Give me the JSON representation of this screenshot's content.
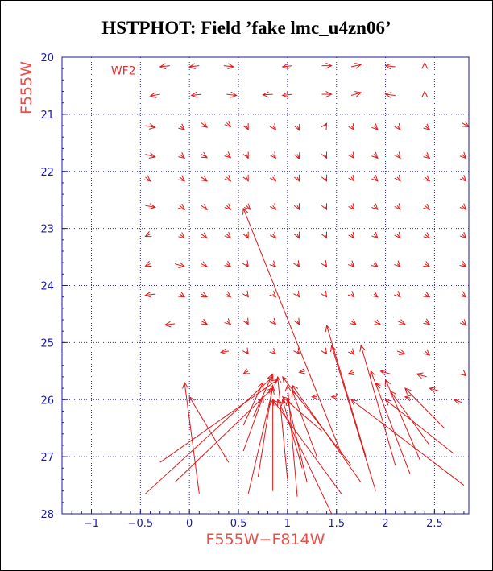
{
  "title": "HSTPHOT: Field ’fake lmc_u4zn06’",
  "chart_data": {
    "type": "scatter",
    "title": "HSTPHOT: Field ’fake lmc_u4zn06’",
    "xlabel": "F555W−F814W",
    "ylabel": "F555W",
    "xlim": [
      -1.3,
      2.85
    ],
    "ylim": [
      28,
      20
    ],
    "y_inverted": true,
    "x_ticks": [
      -1,
      -0.5,
      0,
      0.5,
      1,
      1.5,
      2,
      2.5
    ],
    "x_tick_labels": [
      "−1",
      "−0.5",
      "0",
      "0.5",
      "1",
      "1.5",
      "2",
      "2.5"
    ],
    "x_grid": [
      -1,
      -0.5,
      0,
      0.5,
      1,
      1.5,
      2,
      2.5
    ],
    "y_ticks": [
      20,
      21,
      22,
      23,
      24,
      25,
      26,
      27,
      28
    ],
    "y_tick_labels": [
      "20",
      "21",
      "22",
      "23",
      "24",
      "25",
      "26",
      "27",
      "28"
    ],
    "grid": true,
    "panel_label": "WF2",
    "colors": {
      "frame": "#1a1aa6",
      "grid": "#2a2ad0",
      "vectors": "#e01818",
      "axis_labels": "#e8504a",
      "title": "#000000"
    },
    "series": [
      {
        "type": "vector_field",
        "arrows": [
          [
            -0.2,
            20.15,
            -0.3,
            20.17
          ],
          [
            0.1,
            20.15,
            0.0,
            20.17
          ],
          [
            0.35,
            20.15,
            0.45,
            20.17
          ],
          [
            1.05,
            20.15,
            0.95,
            20.17
          ],
          [
            1.35,
            20.15,
            1.45,
            20.15
          ],
          [
            1.65,
            20.17,
            1.75,
            20.13
          ],
          [
            2.1,
            20.17,
            2.0,
            20.15
          ],
          [
            2.4,
            20.15,
            2.4,
            20.1
          ],
          [
            -0.3,
            20.65,
            -0.4,
            20.68
          ],
          [
            0.12,
            20.65,
            0.02,
            20.67
          ],
          [
            0.38,
            20.65,
            0.48,
            20.67
          ],
          [
            0.85,
            20.65,
            0.75,
            20.66
          ],
          [
            1.05,
            20.65,
            0.95,
            20.67
          ],
          [
            1.35,
            20.65,
            1.45,
            20.65
          ],
          [
            1.65,
            20.67,
            1.75,
            20.62
          ],
          [
            2.1,
            20.67,
            2.0,
            20.65
          ],
          [
            2.4,
            20.65,
            2.4,
            20.6
          ],
          [
            -0.45,
            21.2,
            -0.35,
            21.23
          ],
          [
            -0.1,
            21.2,
            -0.05,
            21.27
          ],
          [
            0.12,
            21.15,
            0.18,
            21.23
          ],
          [
            0.38,
            21.15,
            0.42,
            21.22
          ],
          [
            0.58,
            21.2,
            0.6,
            21.27
          ],
          [
            0.85,
            21.2,
            0.88,
            21.27
          ],
          [
            1.1,
            21.2,
            1.12,
            21.28
          ],
          [
            1.38,
            21.22,
            1.4,
            21.16
          ],
          [
            1.65,
            21.2,
            1.68,
            21.27
          ],
          [
            1.88,
            21.2,
            1.92,
            21.27
          ],
          [
            2.12,
            21.2,
            2.15,
            21.27
          ],
          [
            2.4,
            21.2,
            2.45,
            21.27
          ],
          [
            2.78,
            21.15,
            2.85,
            21.22
          ],
          [
            -0.45,
            21.7,
            -0.35,
            21.75
          ],
          [
            -0.1,
            21.7,
            -0.05,
            21.77
          ],
          [
            0.12,
            21.7,
            0.18,
            21.76
          ],
          [
            0.38,
            21.7,
            0.42,
            21.76
          ],
          [
            0.58,
            21.7,
            0.6,
            21.77
          ],
          [
            0.85,
            21.7,
            0.88,
            21.77
          ],
          [
            1.1,
            21.7,
            1.12,
            21.78
          ],
          [
            1.38,
            21.7,
            1.4,
            21.77
          ],
          [
            1.65,
            21.7,
            1.68,
            21.77
          ],
          [
            1.88,
            21.7,
            1.92,
            21.77
          ],
          [
            2.12,
            21.7,
            2.15,
            21.77
          ],
          [
            2.4,
            21.7,
            2.45,
            21.77
          ],
          [
            2.78,
            21.7,
            2.82,
            21.77
          ],
          [
            -0.45,
            22.1,
            -0.4,
            22.17
          ],
          [
            -0.1,
            22.1,
            -0.05,
            22.17
          ],
          [
            0.12,
            22.1,
            0.18,
            22.17
          ],
          [
            0.38,
            22.1,
            0.42,
            22.17
          ],
          [
            0.58,
            22.1,
            0.6,
            22.17
          ],
          [
            0.85,
            22.1,
            0.88,
            22.17
          ],
          [
            1.1,
            22.1,
            1.12,
            22.17
          ],
          [
            1.38,
            22.1,
            1.4,
            22.17
          ],
          [
            1.65,
            22.1,
            1.68,
            22.17
          ],
          [
            1.88,
            22.1,
            1.92,
            22.17
          ],
          [
            2.12,
            22.1,
            2.15,
            22.17
          ],
          [
            2.4,
            22.1,
            2.45,
            22.17
          ],
          [
            2.78,
            22.1,
            2.82,
            22.17
          ],
          [
            -0.45,
            22.6,
            -0.35,
            22.63
          ],
          [
            -0.1,
            22.6,
            -0.05,
            22.67
          ],
          [
            0.12,
            22.6,
            0.18,
            22.67
          ],
          [
            0.38,
            22.6,
            0.42,
            22.67
          ],
          [
            0.58,
            22.6,
            0.62,
            22.67
          ],
          [
            0.85,
            22.6,
            0.88,
            22.67
          ],
          [
            1.1,
            22.6,
            1.12,
            22.67
          ],
          [
            1.38,
            22.6,
            1.4,
            22.67
          ],
          [
            1.65,
            22.6,
            1.68,
            22.67
          ],
          [
            1.88,
            22.6,
            1.92,
            22.67
          ],
          [
            2.12,
            22.6,
            2.15,
            22.67
          ],
          [
            2.4,
            22.6,
            2.45,
            22.67
          ],
          [
            2.78,
            22.6,
            2.82,
            22.67
          ],
          [
            -0.4,
            23.1,
            -0.45,
            23.14
          ],
          [
            -0.1,
            23.1,
            -0.05,
            23.17
          ],
          [
            0.12,
            23.1,
            0.18,
            23.17
          ],
          [
            0.38,
            23.1,
            0.42,
            23.17
          ],
          [
            0.58,
            23.1,
            0.6,
            23.17
          ],
          [
            0.85,
            23.1,
            0.88,
            23.17
          ],
          [
            1.1,
            23.1,
            1.12,
            23.17
          ],
          [
            1.38,
            23.1,
            1.4,
            23.17
          ],
          [
            1.65,
            23.1,
            1.68,
            23.17
          ],
          [
            1.88,
            23.1,
            1.92,
            23.17
          ],
          [
            2.12,
            23.1,
            2.15,
            23.17
          ],
          [
            2.4,
            23.1,
            2.45,
            23.17
          ],
          [
            2.78,
            23.1,
            2.82,
            23.17
          ],
          [
            -0.4,
            23.62,
            -0.45,
            23.66
          ],
          [
            -0.15,
            23.62,
            -0.05,
            23.67
          ],
          [
            0.12,
            23.62,
            0.18,
            23.67
          ],
          [
            0.38,
            23.62,
            0.42,
            23.67
          ],
          [
            0.58,
            23.62,
            0.6,
            23.67
          ],
          [
            0.85,
            23.62,
            0.88,
            23.67
          ],
          [
            1.1,
            23.62,
            1.12,
            23.67
          ],
          [
            1.38,
            23.62,
            1.4,
            23.67
          ],
          [
            1.65,
            23.62,
            1.68,
            23.67
          ],
          [
            1.88,
            23.62,
            1.92,
            23.67
          ],
          [
            2.12,
            23.62,
            2.15,
            23.67
          ],
          [
            2.4,
            23.62,
            2.45,
            23.67
          ],
          [
            2.78,
            23.62,
            2.82,
            23.67
          ],
          [
            -0.35,
            24.15,
            -0.45,
            24.17
          ],
          [
            -0.1,
            24.15,
            -0.05,
            24.2
          ],
          [
            0.12,
            24.15,
            0.18,
            24.2
          ],
          [
            0.38,
            24.15,
            0.42,
            24.2
          ],
          [
            0.58,
            24.15,
            0.6,
            24.2
          ],
          [
            0.85,
            24.15,
            0.88,
            24.2
          ],
          [
            1.1,
            24.15,
            1.12,
            24.2
          ],
          [
            1.38,
            24.15,
            1.4,
            24.2
          ],
          [
            1.65,
            24.15,
            1.68,
            24.2
          ],
          [
            1.88,
            24.15,
            1.92,
            24.2
          ],
          [
            2.12,
            24.15,
            2.15,
            24.2
          ],
          [
            2.4,
            24.15,
            2.45,
            24.2
          ],
          [
            2.78,
            24.15,
            2.82,
            24.2
          ],
          [
            -0.15,
            24.67,
            -0.25,
            24.69
          ],
          [
            0.12,
            24.62,
            0.18,
            24.68
          ],
          [
            0.38,
            24.62,
            0.42,
            24.68
          ],
          [
            0.58,
            24.62,
            0.6,
            24.68
          ],
          [
            0.85,
            24.62,
            0.88,
            24.68
          ],
          [
            1.1,
            24.62,
            1.12,
            24.68
          ],
          [
            1.65,
            24.62,
            1.7,
            24.69
          ],
          [
            1.88,
            24.62,
            1.95,
            24.69
          ],
          [
            2.12,
            24.62,
            2.2,
            24.68
          ],
          [
            2.4,
            24.62,
            2.45,
            24.68
          ],
          [
            2.78,
            24.62,
            2.82,
            24.7
          ],
          [
            0.4,
            25.15,
            0.32,
            25.17
          ],
          [
            0.58,
            25.15,
            0.6,
            25.2
          ],
          [
            0.85,
            25.15,
            0.88,
            25.2
          ],
          [
            1.1,
            25.15,
            1.12,
            25.2
          ],
          [
            1.38,
            25.15,
            1.4,
            25.2
          ],
          [
            1.65,
            25.15,
            1.68,
            25.21
          ],
          [
            2.12,
            25.15,
            2.2,
            25.2
          ],
          [
            2.4,
            25.15,
            2.45,
            25.22
          ],
          [
            0.6,
            25.5,
            0.55,
            25.55
          ],
          [
            1.18,
            25.5,
            1.12,
            25.52
          ],
          [
            1.68,
            25.52,
            1.62,
            25.55
          ],
          [
            2.05,
            25.55,
            1.95,
            25.5
          ],
          [
            2.42,
            25.6,
            2.32,
            25.55
          ],
          [
            2.8,
            25.55,
            2.82,
            25.58
          ],
          [
            1.95,
            25.75,
            1.9,
            25.72
          ],
          [
            2.55,
            25.85,
            2.45,
            25.8
          ],
          [
            2.78,
            26.05,
            2.7,
            26.0
          ],
          [
            1.3,
            25.95,
            1.25,
            25.95
          ],
          [
            1.5,
            25.95,
            1.45,
            25.95
          ],
          [
            2.25,
            25.97,
            2.2,
            25.95
          ],
          [
            1.8,
            27.0,
            1.4,
            24.7
          ],
          [
            -0.45,
            27.65,
            0.85,
            25.6
          ],
          [
            -0.3,
            27.1,
            0.9,
            25.65
          ],
          [
            -0.15,
            27.45,
            0.85,
            25.8
          ],
          [
            0.1,
            27.65,
            -0.05,
            25.7
          ],
          [
            0.4,
            27.1,
            0.0,
            25.95
          ],
          [
            0.6,
            27.65,
            0.85,
            25.8
          ],
          [
            0.7,
            27.35,
            0.85,
            25.75
          ],
          [
            0.85,
            27.6,
            0.85,
            26.0
          ],
          [
            1.0,
            27.4,
            0.9,
            25.6
          ],
          [
            1.1,
            27.7,
            1.0,
            25.75
          ],
          [
            1.15,
            27.2,
            0.95,
            26.0
          ],
          [
            1.2,
            27.45,
            1.0,
            26.0
          ],
          [
            1.3,
            27.0,
            1.05,
            25.85
          ],
          [
            1.45,
            28.0,
            0.9,
            26.0
          ],
          [
            1.55,
            27.65,
            0.85,
            26.0
          ],
          [
            1.65,
            27.15,
            0.95,
            25.6
          ],
          [
            1.75,
            27.45,
            1.05,
            25.75
          ],
          [
            1.9,
            27.6,
            1.45,
            25.05
          ],
          [
            2.1,
            27.15,
            1.75,
            25.05
          ],
          [
            2.25,
            27.3,
            1.85,
            25.5
          ],
          [
            2.35,
            27.05,
            2.0,
            25.65
          ],
          [
            2.45,
            26.8,
            2.05,
            25.85
          ],
          [
            2.6,
            26.5,
            2.2,
            25.8
          ],
          [
            2.7,
            26.95,
            2.0,
            26.0
          ],
          [
            2.8,
            27.5,
            1.65,
            26.0
          ],
          [
            1.55,
            26.95,
            0.55,
            22.65
          ],
          [
            0.65,
            26.3,
            0.85,
            25.55
          ],
          [
            0.55,
            26.45,
            0.75,
            25.7
          ],
          [
            0.55,
            26.9,
            0.75,
            25.95
          ],
          [
            1.35,
            26.55,
            0.95,
            25.95
          ]
        ]
      }
    ]
  }
}
